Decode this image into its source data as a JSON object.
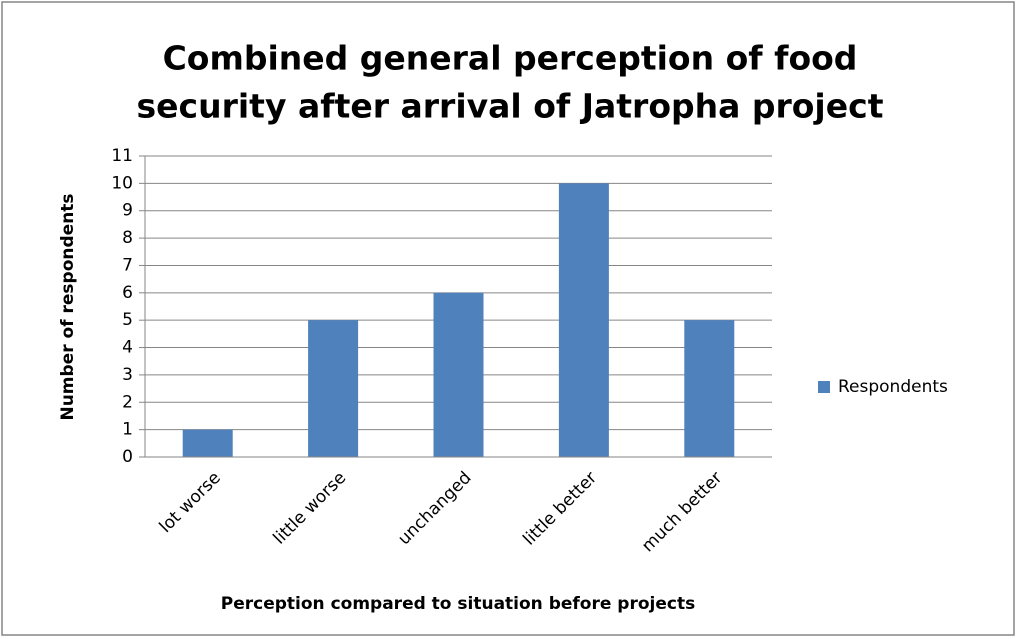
{
  "chart_data": {
    "type": "bar",
    "title": [
      "Combined general perception of food",
      "security after arrival of Jatropha project"
    ],
    "x_label": "Perception compared to situation before projects",
    "y_label": "Number of respondents",
    "categories": [
      "lot worse",
      "little worse",
      "unchanged",
      "little better",
      "much better"
    ],
    "series": [
      {
        "name": "Respondents",
        "color": "#4f81bd",
        "values": [
          1,
          5,
          6,
          10,
          5
        ]
      }
    ],
    "ylim": [
      0,
      11
    ],
    "yticks": [
      0,
      1,
      2,
      3,
      4,
      5,
      6,
      7,
      8,
      9,
      10,
      11
    ],
    "grid": true,
    "legend": "right"
  }
}
